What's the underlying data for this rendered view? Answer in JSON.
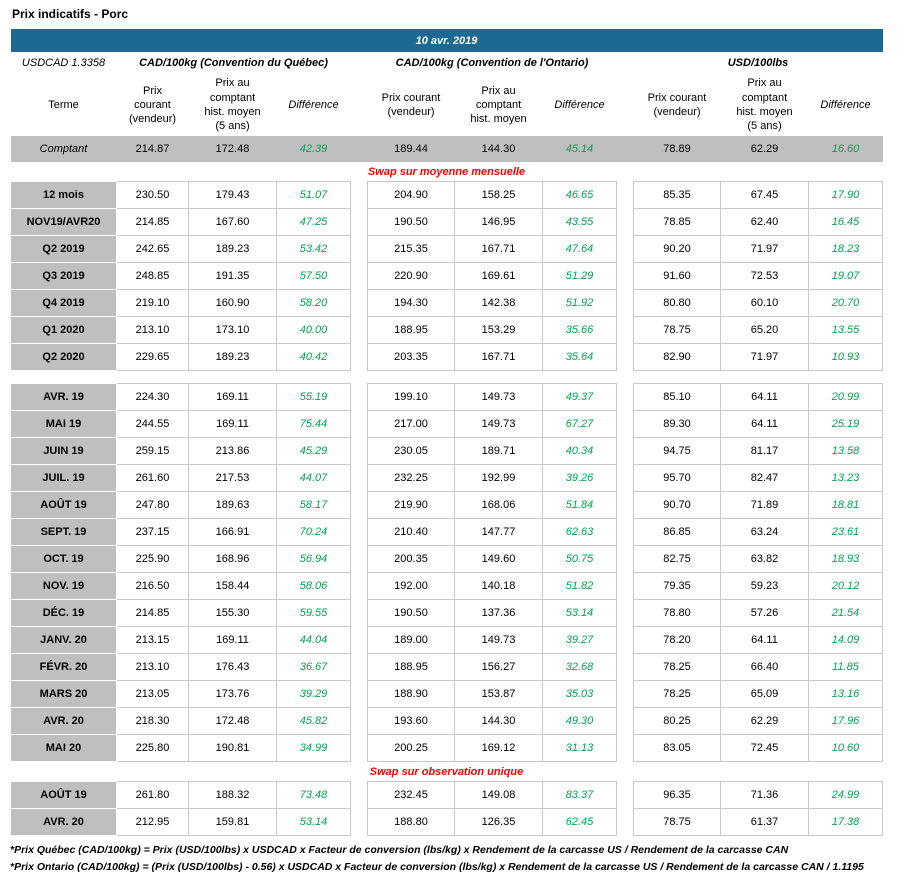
{
  "colors": {
    "banner_blue": "#1B6A93",
    "header_gray": "#BFBFBF",
    "positive_green": "#00A651",
    "section_red": "#FF0000"
  },
  "page": {
    "title": "Prix indicatifs - Porc",
    "date_banner": "10 avr. 2019",
    "usdcad": "USDCAD 1.3358"
  },
  "table": {
    "groups": [
      "CAD/100kg (Convention du Québec)",
      "CAD/100kg (Convention de l'Ontario)",
      "USD/100lbs"
    ],
    "col_headers": {
      "terme": "Terme",
      "quebec_prix_courant": "Prix\ncourant\n(vendeur)",
      "quebec_prix_comptant": "Prix au\ncomptant\nhist. moyen\n(5 ans)",
      "ontario_prix_courant": "Prix courant\n(vendeur)",
      "ontario_prix_comptant": "Prix au\ncomptant\nhist. moyen",
      "us_prix_courant": "Prix courant\n(vendeur)",
      "us_prix_comptant": "Prix au\ncomptant\nhist. moyen\n(5 ans)",
      "difference": "Différence"
    },
    "rows": [
      {
        "type": "data",
        "variant": "comptant",
        "terme": "Comptant",
        "values": [
          "214.87",
          "172.48",
          "42.39",
          "189.44",
          "144.30",
          "45.14",
          "78.89",
          "62.29",
          "16.60"
        ]
      },
      {
        "type": "section",
        "label": "Swap sur moyenne mensuelle"
      },
      {
        "type": "data",
        "terme": "12 mois",
        "values": [
          "230.50",
          "179.43",
          "51.07",
          "204.90",
          "158.25",
          "46.65",
          "85.35",
          "67.45",
          "17.90"
        ]
      },
      {
        "type": "data",
        "terme": "NOV19/AVR20",
        "values": [
          "214.85",
          "167.60",
          "47.25",
          "190.50",
          "146.95",
          "43.55",
          "78.85",
          "62.40",
          "16.45"
        ]
      },
      {
        "type": "data",
        "terme": "Q2 2019",
        "values": [
          "242.65",
          "189.23",
          "53.42",
          "215.35",
          "167.71",
          "47.64",
          "90.20",
          "71.97",
          "18.23"
        ]
      },
      {
        "type": "data",
        "terme": "Q3 2019",
        "values": [
          "248.85",
          "191.35",
          "57.50",
          "220.90",
          "169.61",
          "51.29",
          "91.60",
          "72.53",
          "19.07"
        ]
      },
      {
        "type": "data",
        "terme": "Q4 2019",
        "values": [
          "219.10",
          "160.90",
          "58.20",
          "194.30",
          "142.38",
          "51.92",
          "80.80",
          "60.10",
          "20.70"
        ]
      },
      {
        "type": "data",
        "terme": "Q1 2020",
        "values": [
          "213.10",
          "173.10",
          "40.00",
          "188.95",
          "153.29",
          "35.66",
          "78.75",
          "65.20",
          "13.55"
        ]
      },
      {
        "type": "data",
        "terme": "Q2 2020",
        "values": [
          "229.65",
          "189.23",
          "40.42",
          "203.35",
          "167.71",
          "35.64",
          "82.90",
          "71.97",
          "10.93"
        ]
      },
      {
        "type": "gap"
      },
      {
        "type": "data",
        "terme": "AVR. 19",
        "values": [
          "224.30",
          "169.11",
          "55.19",
          "199.10",
          "149.73",
          "49.37",
          "85.10",
          "64.11",
          "20.99"
        ]
      },
      {
        "type": "data",
        "terme": "MAI 19",
        "values": [
          "244.55",
          "169.11",
          "75.44",
          "217.00",
          "149.73",
          "67.27",
          "89.30",
          "64.11",
          "25.19"
        ]
      },
      {
        "type": "data",
        "terme": "JUIN 19",
        "values": [
          "259.15",
          "213.86",
          "45.29",
          "230.05",
          "189.71",
          "40.34",
          "94.75",
          "81.17",
          "13.58"
        ]
      },
      {
        "type": "data",
        "terme": "JUIL. 19",
        "values": [
          "261.60",
          "217.53",
          "44.07",
          "232.25",
          "192.99",
          "39.26",
          "95.70",
          "82.47",
          "13.23"
        ]
      },
      {
        "type": "data",
        "terme": "AOÛT 19",
        "values": [
          "247.80",
          "189.63",
          "58.17",
          "219.90",
          "168.06",
          "51.84",
          "90.70",
          "71.89",
          "18.81"
        ]
      },
      {
        "type": "data",
        "terme": "SEPT. 19",
        "values": [
          "237.15",
          "166.91",
          "70.24",
          "210.40",
          "147.77",
          "62.63",
          "86.85",
          "63.24",
          "23.61"
        ]
      },
      {
        "type": "data",
        "terme": "OCT. 19",
        "values": [
          "225.90",
          "168.96",
          "56.94",
          "200.35",
          "149.60",
          "50.75",
          "82.75",
          "63.82",
          "18.93"
        ]
      },
      {
        "type": "data",
        "terme": "NOV. 19",
        "values": [
          "216.50",
          "158.44",
          "58.06",
          "192.00",
          "140.18",
          "51.82",
          "79.35",
          "59.23",
          "20.12"
        ]
      },
      {
        "type": "data",
        "terme": "DÉC. 19",
        "values": [
          "214.85",
          "155.30",
          "59.55",
          "190.50",
          "137.36",
          "53.14",
          "78.80",
          "57.26",
          "21.54"
        ]
      },
      {
        "type": "data",
        "terme": "JANV. 20",
        "values": [
          "213.15",
          "169.11",
          "44.04",
          "189.00",
          "149.73",
          "39.27",
          "78.20",
          "64.11",
          "14.09"
        ]
      },
      {
        "type": "data",
        "terme": "FÉVR. 20",
        "values": [
          "213.10",
          "176.43",
          "36.67",
          "188.95",
          "156.27",
          "32.68",
          "78.25",
          "66.40",
          "11.85"
        ]
      },
      {
        "type": "data",
        "terme": "MARS 20",
        "values": [
          "213.05",
          "173.76",
          "39.29",
          "188.90",
          "153.87",
          "35.03",
          "78.25",
          "65.09",
          "13.16"
        ]
      },
      {
        "type": "data",
        "terme": "AVR. 20",
        "values": [
          "218.30",
          "172.48",
          "45.82",
          "193.60",
          "144.30",
          "49.30",
          "80.25",
          "62.29",
          "17.96"
        ]
      },
      {
        "type": "data",
        "terme": "MAI 20",
        "values": [
          "225.80",
          "190.81",
          "34.99",
          "200.25",
          "169.12",
          "31.13",
          "83.05",
          "72.45",
          "10.60"
        ]
      },
      {
        "type": "section",
        "label": "Swap sur observation unique"
      },
      {
        "type": "data",
        "terme": "AOÛT 19",
        "values": [
          "261.80",
          "188.32",
          "73.48",
          "232.45",
          "149.08",
          "83.37",
          "96.35",
          "71.36",
          "24.99"
        ]
      },
      {
        "type": "data",
        "terme": "AVR. 20",
        "values": [
          "212.95",
          "159.81",
          "53.14",
          "188.80",
          "126.35",
          "62.45",
          "78.75",
          "61.37",
          "17.38"
        ]
      }
    ]
  },
  "footnotes": [
    "*Prix Québec (CAD/100kg) = Prix (USD/100lbs) x USDCAD x Facteur de conversion (lbs/kg) x Rendement de la carcasse US / Rendement de la carcasse CAN",
    "*Prix Ontario (CAD/100kg) = (Prix (USD/100lbs) - 0.56) x USDCAD x Facteur de conversion (lbs/kg) x Rendement de la carcasse US / Rendement de la carcasse CAN / 1.1195"
  ]
}
